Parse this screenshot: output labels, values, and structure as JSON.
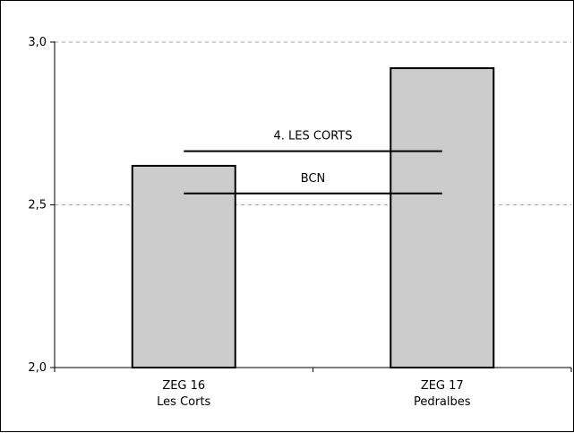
{
  "chart_data": {
    "type": "bar",
    "categories": [
      {
        "line1": "ZEG 16",
        "line2": "Les Corts"
      },
      {
        "line1": "ZEG 17",
        "line2": "Pedralbes"
      }
    ],
    "values": [
      2.62,
      2.92
    ],
    "ylim": [
      2.0,
      3.0
    ],
    "yticks": [
      "2,0",
      "2,5",
      "3,0"
    ],
    "ytick_values": [
      2.0,
      2.5,
      3.0
    ],
    "grid": true,
    "reference_lines": [
      {
        "label": "4. LES CORTS",
        "value": 2.665
      },
      {
        "label": "BCN",
        "value": 2.535
      }
    ],
    "colors": {
      "bar_fill": "#cccccc",
      "bar_stroke": "#000000",
      "grid": "#a6a6a6",
      "axis": "#000000"
    }
  }
}
